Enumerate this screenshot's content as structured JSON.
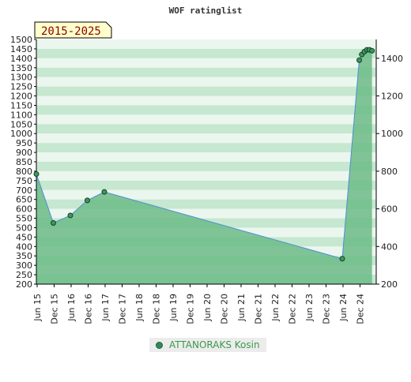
{
  "chart_data": {
    "type": "line",
    "title": "WOF ratinglist",
    "period_badge": "2015-2025",
    "x_ticks": [
      "Jun 15",
      "Dec 15",
      "Jun 16",
      "Dec 16",
      "Jun 17",
      "Dec 17",
      "Jun 18",
      "Dec 18",
      "Jun 19",
      "Dec 19",
      "Jun 20",
      "Dec 20",
      "Jun 21",
      "Dec 21",
      "Jun 22",
      "Dec 22",
      "Jun 23",
      "Dec 23",
      "Jun 24",
      "Dec 24"
    ],
    "y_left": {
      "min": 200,
      "max": 1500,
      "step": 50
    },
    "y_right": {
      "ticks": [
        200,
        400,
        600,
        800,
        1000,
        1200,
        1400
      ]
    },
    "grid": true,
    "legend_position": "bottom-center",
    "series": [
      {
        "name": "ATTANORAKS Kosin",
        "color": "#4a8fd6",
        "fill": "#5cb278",
        "marker_color": "#3a9a5a",
        "points": [
          {
            "x": 0.0,
            "y": 785
          },
          {
            "x": 1.0,
            "y": 525
          },
          {
            "x": 2.0,
            "y": 565
          },
          {
            "x": 3.0,
            "y": 645
          },
          {
            "x": 4.0,
            "y": 690
          },
          {
            "x": 18.0,
            "y": 335
          },
          {
            "x": 19.0,
            "y": 1390
          },
          {
            "x": 19.15,
            "y": 1420
          },
          {
            "x": 19.3,
            "y": 1435
          },
          {
            "x": 19.45,
            "y": 1445
          },
          {
            "x": 19.6,
            "y": 1445
          },
          {
            "x": 19.75,
            "y": 1440
          }
        ]
      }
    ]
  }
}
